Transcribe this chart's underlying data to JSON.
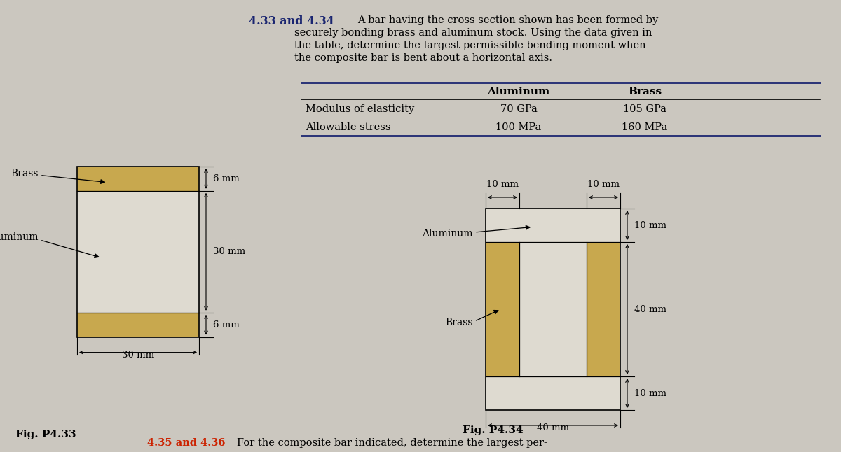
{
  "bg_color": "#cbc7bf",
  "brass_color": "#c8a84e",
  "aluminum_color": "#dedad0",
  "title_number": "4.33 and 4.34",
  "title_body_line1": "A bar having the cross section shown has been formed by",
  "title_body_line2": "securely bonding brass and aluminum stock. Using the data given in",
  "title_body_line3": "the table, determine the largest permissible bending moment when",
  "title_body_line4": "the composite bar is bent about a horizontal axis.",
  "col_header_al": "Aluminum",
  "col_header_br": "Brass",
  "row1_label": "Modulus of elasticity",
  "row1_al": "70 GPa",
  "row1_br": "105 GPa",
  "row2_label": "Allowable stress",
  "row2_al": "100 MPa",
  "row2_br": "160 MPa",
  "fig433_label": "Fig. P4.33",
  "fig434_label": "Fig. P4.34",
  "bottom_num": "4.35 and 4.36",
  "bottom_text": "For the composite bar indicated, determine the largest per-",
  "label_brass": "Brass",
  "label_aluminum": "Aluminum",
  "dim_6mm": "6 mm",
  "dim_30mm": "30 mm",
  "dim_10mm": "10 mm",
  "dim_40mm": "40 mm"
}
